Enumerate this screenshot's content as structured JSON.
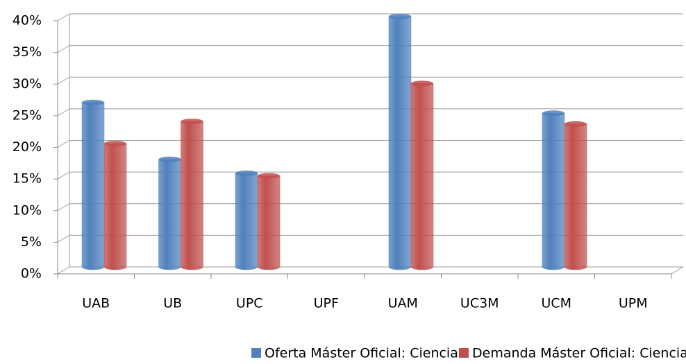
{
  "chart_data": {
    "type": "bar3d",
    "categories": [
      "UAB",
      "UB",
      "UPC",
      "UPF",
      "UAM",
      "UC3M",
      "UCM",
      "UPM"
    ],
    "series": [
      {
        "name": "Oferta Máster Oficial: Ciencias",
        "color": "#4f81bd",
        "values": [
          26,
          17,
          14.8,
          null,
          39.6,
          null,
          24.3,
          null
        ]
      },
      {
        "name": "Demanda Máster Oficial: Ciencias",
        "color": "#c0504d",
        "values": [
          19.5,
          23,
          14.4,
          null,
          29,
          null,
          22.6,
          null
        ]
      }
    ],
    "ylim": [
      0,
      40
    ],
    "yticks": [
      {
        "value": 0,
        "label": "0%"
      },
      {
        "value": 5,
        "label": "5%"
      },
      {
        "value": 10,
        "label": "10%"
      },
      {
        "value": 15,
        "label": "15%"
      },
      {
        "value": 20,
        "label": "20%"
      },
      {
        "value": 25,
        "label": "25%"
      },
      {
        "value": 30,
        "label": "30%"
      },
      {
        "value": 35,
        "label": "35%"
      },
      {
        "value": 40,
        "label": "40%"
      }
    ],
    "grid": true,
    "legend": "bottom"
  }
}
